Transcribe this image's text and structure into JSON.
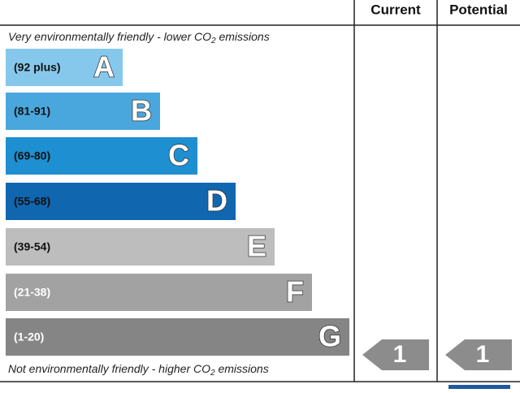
{
  "header": {
    "columns": [
      "Current",
      "Potential"
    ]
  },
  "top_note": {
    "before": "Very environmentally friendly - lower CO",
    "sub": "2",
    "after": " emissions"
  },
  "bands": [
    {
      "range": "(92 plus)",
      "letter": "A"
    },
    {
      "range": "(81-91)",
      "letter": "B"
    },
    {
      "range": "(69-80)",
      "letter": "C"
    },
    {
      "range": "(55-68)",
      "letter": "D"
    },
    {
      "range": "(39-54)",
      "letter": "E"
    },
    {
      "range": "(21-38)",
      "letter": "F"
    },
    {
      "range": "(1-20)",
      "letter": "G"
    }
  ],
  "bottom_note": {
    "before": "Not environmentally friendly - higher CO",
    "sub": "2",
    "after": " emissions"
  },
  "ratings": {
    "current": "1",
    "potential": "1"
  }
}
